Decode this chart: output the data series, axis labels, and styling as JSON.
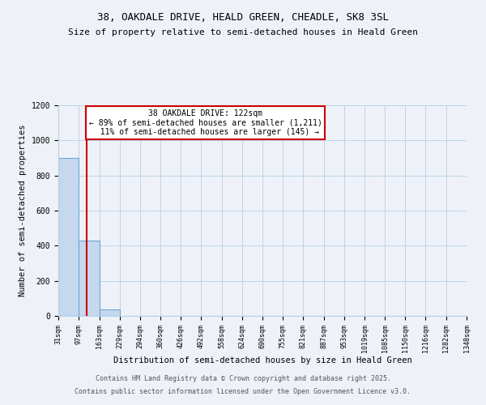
{
  "title1": "38, OAKDALE DRIVE, HEALD GREEN, CHEADLE, SK8 3SL",
  "title2": "Size of property relative to semi-detached houses in Heald Green",
  "xlabel": "Distribution of semi-detached houses by size in Heald Green",
  "ylabel": "Number of semi-detached properties",
  "bin_edges": [
    31,
    97,
    163,
    229,
    294,
    360,
    426,
    492,
    558,
    624,
    690,
    755,
    821,
    887,
    953,
    1019,
    1085,
    1150,
    1216,
    1282,
    1348
  ],
  "bin_counts": [
    900,
    430,
    35,
    0,
    0,
    0,
    0,
    0,
    0,
    0,
    0,
    0,
    0,
    0,
    0,
    0,
    0,
    0,
    0,
    0
  ],
  "property_size": 122,
  "bar_color": "#c5d8ee",
  "bar_edge_color": "#6aaad4",
  "vline_color": "#cc0000",
  "ylim": [
    0,
    1200
  ],
  "yticks": [
    0,
    200,
    400,
    600,
    800,
    1000,
    1200
  ],
  "annotation_line1": "38 OAKDALE DRIVE: 122sqm",
  "annotation_line2": "← 89% of semi-detached houses are smaller (1,211)",
  "annotation_line3": "  11% of semi-detached houses are larger (145) →",
  "annotation_box_color": "#ffffff",
  "annotation_box_edge": "#cc0000",
  "footer1": "Contains HM Land Registry data © Crown copyright and database right 2025.",
  "footer2": "Contains public sector information licensed under the Open Government Licence v3.0.",
  "bg_color": "#eef2f8",
  "grid_color": "#b8cfe8",
  "title_fontsize": 9,
  "subtitle_fontsize": 8
}
